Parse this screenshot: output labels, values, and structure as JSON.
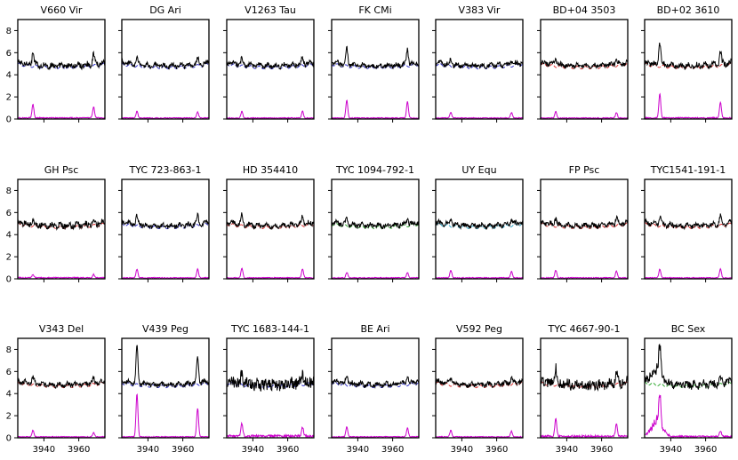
{
  "chart_data": {
    "type": "line",
    "layout": "small-multiples grid, 3 rows x 7 columns",
    "x_range": [
      3925,
      3975
    ],
    "y_range": [
      0,
      9
    ],
    "x_ticks": [
      3940,
      3960
    ],
    "y_ticks": [
      0,
      2,
      4,
      6,
      8
    ],
    "x_tick_labels": [
      "3940",
      "3960"
    ],
    "y_tick_labels": [
      "0",
      "2",
      "4",
      "6",
      "8"
    ],
    "series_roles": [
      "observed spectrum",
      "template spectrum (dashed)",
      "difference spectrum"
    ],
    "colors": {
      "observed": "#000000",
      "difference": "#cc00cc",
      "blue": "#3333cc",
      "red": "#dd3333",
      "green": "#33aa33",
      "cyan": "#33aacc"
    },
    "panels": [
      {
        "title": "V660 Vir",
        "template_color": "blue",
        "emission": [
          1.2,
          1.0
        ],
        "noise": 0.25
      },
      {
        "title": "DG Ari",
        "template_color": "blue",
        "emission": [
          0.6,
          0.55
        ],
        "noise": 0.2
      },
      {
        "title": "V1263 Tau",
        "template_color": "blue",
        "emission": [
          0.6,
          0.6
        ],
        "noise": 0.2
      },
      {
        "title": "FK CMi",
        "template_color": "blue",
        "emission": [
          1.6,
          1.5
        ],
        "noise": 0.2
      },
      {
        "title": "V383 Vir",
        "template_color": "blue",
        "emission": [
          0.5,
          0.5
        ],
        "noise": 0.2
      },
      {
        "title": "BD+04 3503",
        "template_color": "red",
        "emission": [
          0.6,
          0.5
        ],
        "noise": 0.2
      },
      {
        "title": "BD+02 3610",
        "template_color": "red",
        "emission": [
          2.2,
          1.4
        ],
        "noise": 0.25
      },
      {
        "title": "GH Psc",
        "template_color": "red",
        "emission": [
          0.3,
          0.3
        ],
        "noise": 0.25
      },
      {
        "title": "TYC 723-863-1",
        "template_color": "blue",
        "emission": [
          0.8,
          0.8
        ],
        "noise": 0.2
      },
      {
        "title": "HD 354410",
        "template_color": "red",
        "emission": [
          0.9,
          0.8
        ],
        "noise": 0.2
      },
      {
        "title": "TYC 1094-792-1",
        "template_color": "green",
        "emission": [
          0.5,
          0.5
        ],
        "noise": 0.2
      },
      {
        "title": "UY Equ",
        "template_color": "cyan",
        "emission": [
          0.7,
          0.6
        ],
        "noise": 0.2
      },
      {
        "title": "FP Psc",
        "template_color": "red",
        "emission": [
          0.7,
          0.6
        ],
        "noise": 0.2
      },
      {
        "title": "TYC1541-191-1",
        "template_color": "red",
        "emission": [
          0.8,
          0.8
        ],
        "noise": 0.2
      },
      {
        "title": "V343 Del",
        "template_color": "red",
        "emission": [
          0.6,
          0.4
        ],
        "noise": 0.2
      },
      {
        "title": "V439 Peg",
        "template_color": "blue",
        "emission": [
          3.9,
          2.6
        ],
        "noise": 0.2
      },
      {
        "title": "TYC 1683-144-1",
        "template_color": "blue",
        "emission": [
          1.1,
          0.8
        ],
        "noise": 0.55
      },
      {
        "title": "BE Ari",
        "template_color": "blue",
        "emission": [
          0.9,
          0.8
        ],
        "noise": 0.2
      },
      {
        "title": "V592 Peg",
        "template_color": "red",
        "emission": [
          0.6,
          0.5
        ],
        "noise": 0.2
      },
      {
        "title": "TYC 4667-90-1",
        "template_color": "red",
        "emission": [
          1.6,
          1.1
        ],
        "noise": 0.45
      },
      {
        "title": "BC Sex",
        "template_color": "green",
        "emission": [
          2.8,
          0.5
        ],
        "noise": 0.35
      }
    ]
  }
}
